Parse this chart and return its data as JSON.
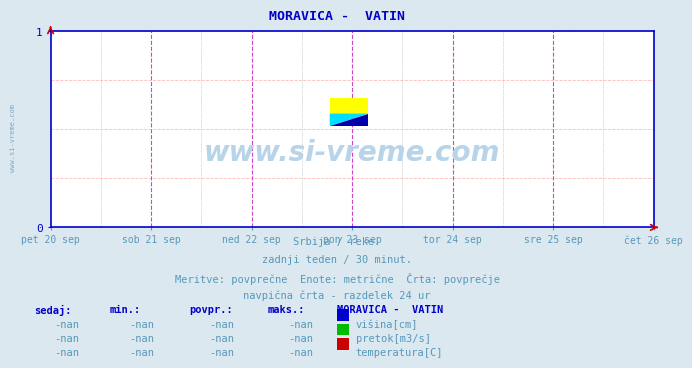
{
  "title": "MORAVICA -  VATIN",
  "title_color": "#0000cc",
  "bg_color": "#dce8f0",
  "plot_bg_color": "#ffffff",
  "axis_color": "#0000cc",
  "text_color": "#5599bb",
  "bold_text_color": "#0000cc",
  "xlabel_days": [
    "pet 20 sep",
    "sob 21 sep",
    "ned 22 sep",
    "pon 23 sep",
    "tor 24 sep",
    "sre 25 sep",
    "čet 26 sep"
  ],
  "xpos_days": [
    0.0,
    0.1667,
    0.3333,
    0.5,
    0.6667,
    0.8333,
    1.0
  ],
  "subtitle1": "Srbija / reke.",
  "subtitle2": "zadnji teden / 30 minut.",
  "subtitle3": "Meritve: povprečne  Enote: metrične  Črta: povprečje",
  "subtitle4": "navpična črta - razdelek 24 ur",
  "table_headers": [
    "sedaj:",
    "min.:",
    "povpr.:",
    "maks.:"
  ],
  "table_station": "MORAVICA -  VATIN",
  "legend_items": [
    {
      "color": "#0000cc",
      "label": "višina[cm]"
    },
    {
      "color": "#00bb00",
      "label": "pretok[m3/s]"
    },
    {
      "color": "#cc0000",
      "label": "temperatura[C]"
    }
  ],
  "table_rows": [
    [
      "-nan",
      "-nan",
      "-nan",
      "-nan"
    ],
    [
      "-nan",
      "-nan",
      "-nan",
      "-nan"
    ],
    [
      "-nan",
      "-nan",
      "-nan",
      "-nan"
    ]
  ],
  "watermark": "www.si-vreme.com",
  "watermark_color": "#b8d4e8",
  "side_label": "www.si-vreme.com"
}
